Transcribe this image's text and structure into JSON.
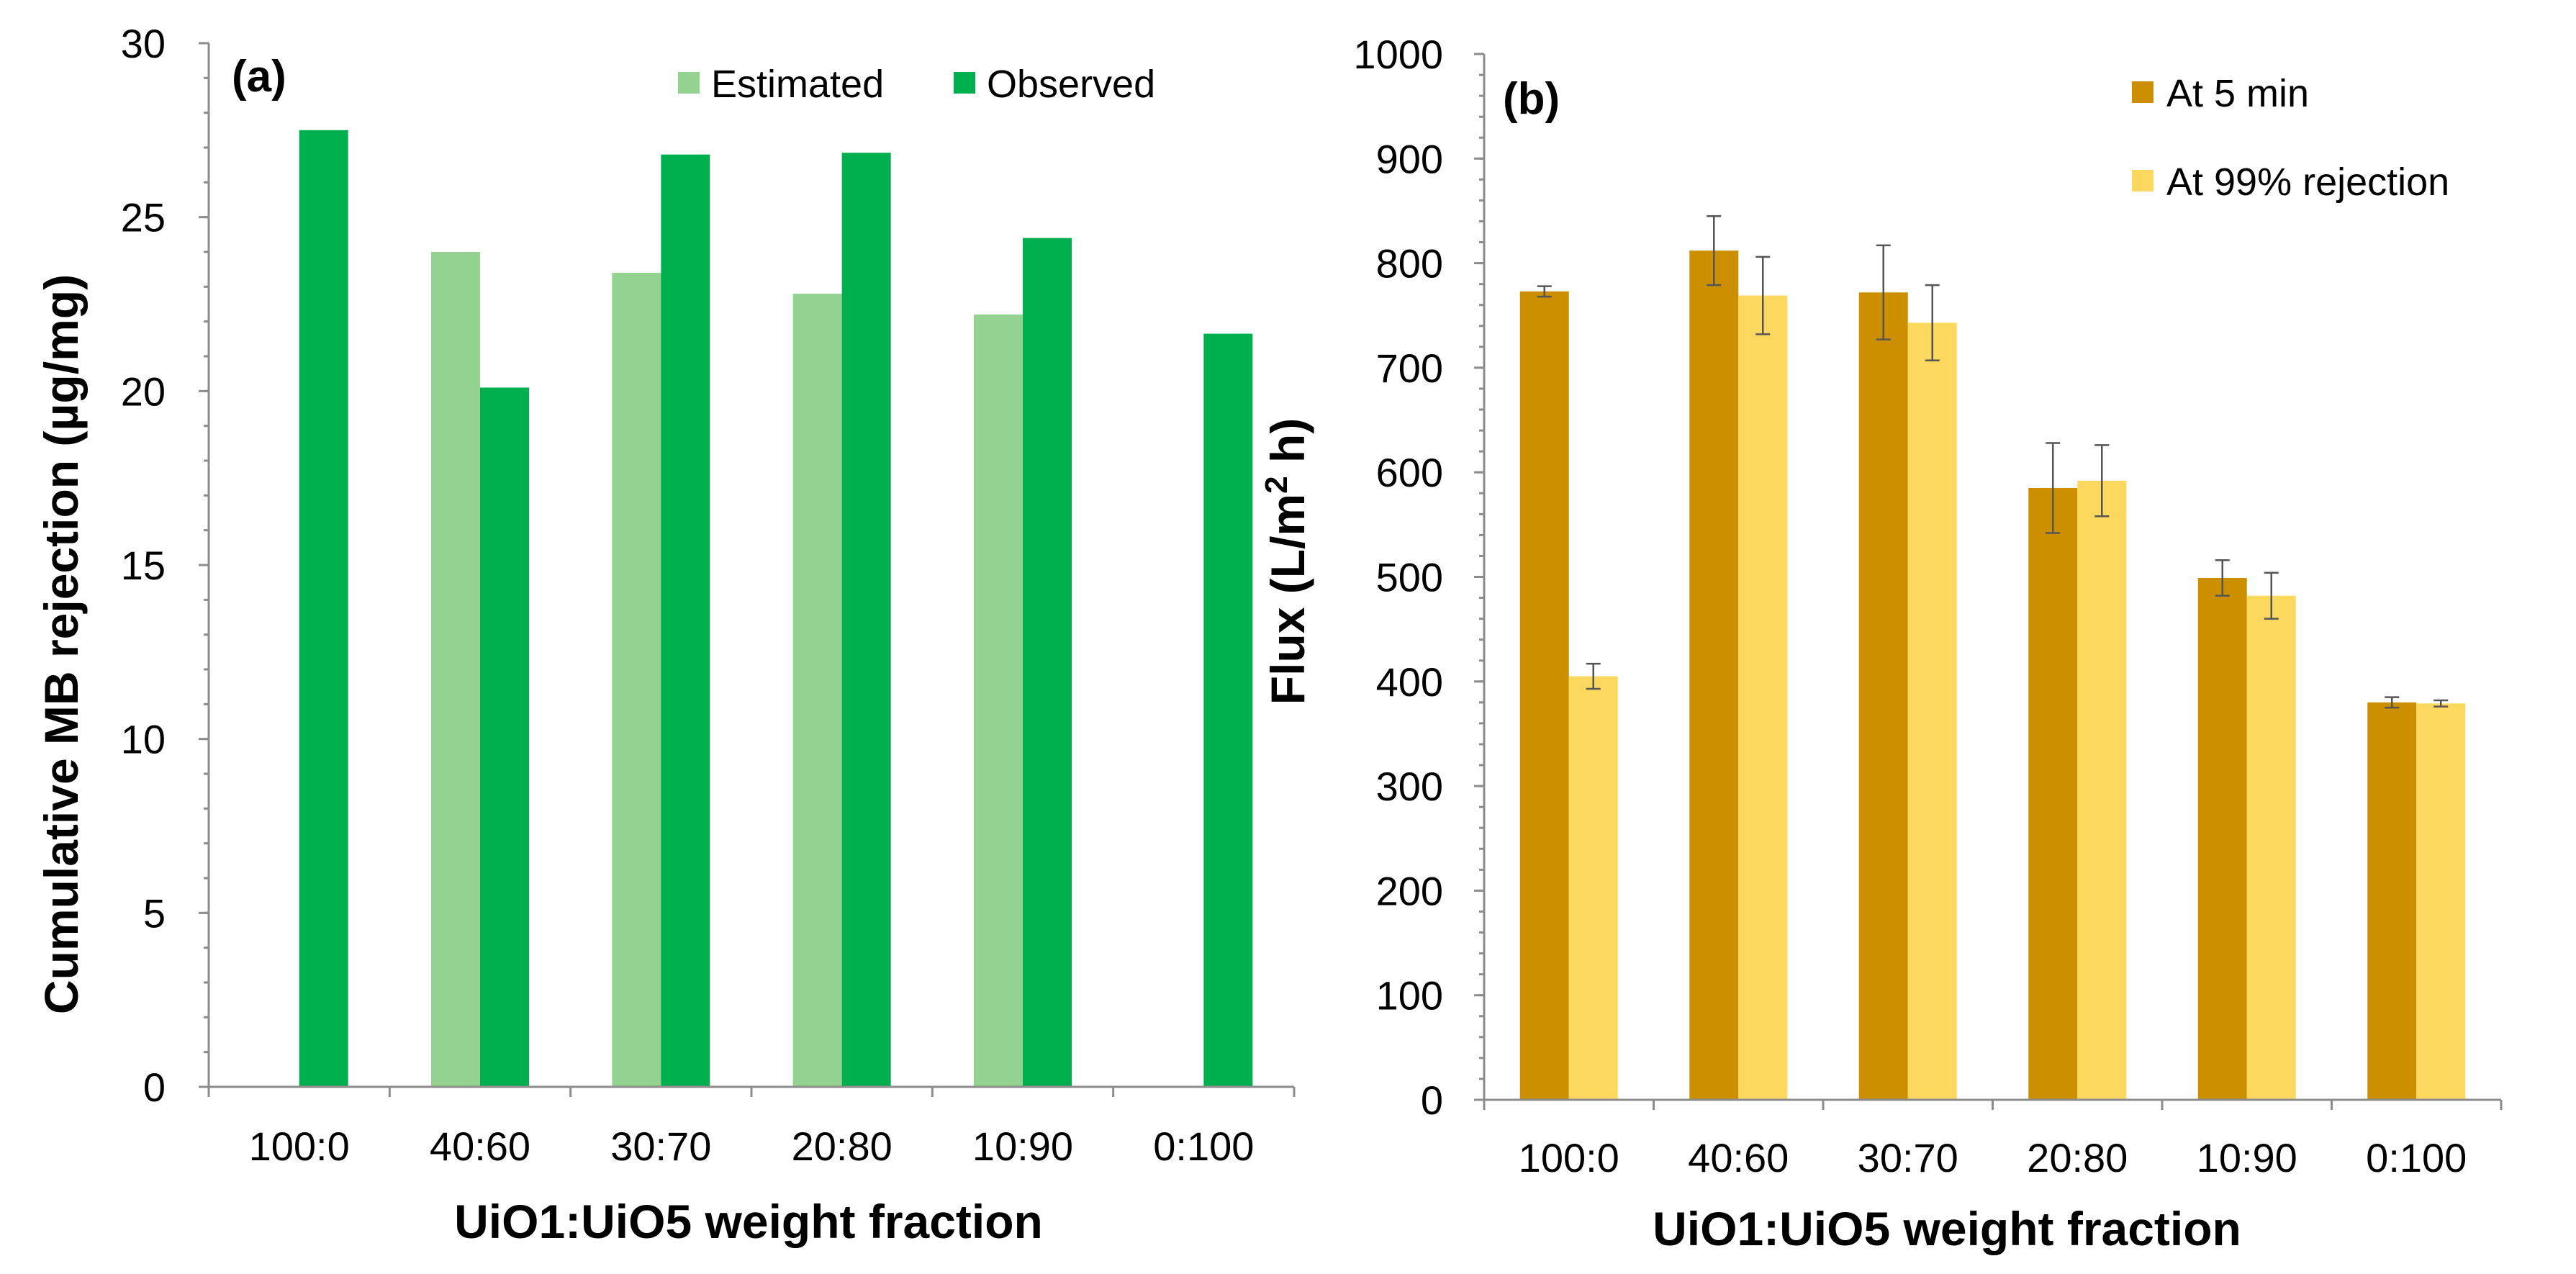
{
  "chart_data": [
    {
      "type": "bar",
      "panel_label": "(a)",
      "categories": [
        "100:0",
        "40:60",
        "30:70",
        "20:80",
        "10:90",
        "0:100"
      ],
      "series": [
        {
          "name": "Estimated",
          "color": "#93d38f",
          "values": [
            null,
            24.0,
            23.4,
            22.8,
            22.2,
            null
          ]
        },
        {
          "name": "Observed",
          "color": "#00b04e",
          "values": [
            27.5,
            20.1,
            26.8,
            26.85,
            24.4,
            21.65
          ]
        }
      ],
      "xlabel": "UiO1:UiO5 weight fraction",
      "ylabel": "Cumulative MB rejection (µg/mg)",
      "ylim": [
        0,
        30
      ],
      "yticks": [
        0,
        5,
        10,
        15,
        20,
        25,
        30
      ],
      "legend_position": "top-right"
    },
    {
      "type": "bar",
      "panel_label": "(b)",
      "categories": [
        "100:0",
        "40:60",
        "30:70",
        "20:80",
        "10:90",
        "0:100"
      ],
      "series": [
        {
          "name": "At 5 min",
          "color": "#cc8f00",
          "values": [
            773,
            812,
            772,
            585,
            499,
            380
          ],
          "errors": [
            5,
            33,
            45,
            43,
            17,
            5
          ]
        },
        {
          "name": "At 99% rejection",
          "color": "#fdd85f",
          "values": [
            405,
            769,
            743,
            592,
            482,
            379
          ],
          "errors": [
            12,
            37,
            36,
            34,
            22,
            3
          ]
        }
      ],
      "xlabel": "UiO1:UiO5 weight fraction",
      "ylabel_main": "Flux (L/m",
      "ylabel_sup": "2",
      "ylabel_end": " h)",
      "ylim": [
        0,
        1000
      ],
      "yticks": [
        0,
        100,
        200,
        300,
        400,
        500,
        600,
        700,
        800,
        900,
        1000
      ],
      "legend_position": "top-right"
    }
  ]
}
